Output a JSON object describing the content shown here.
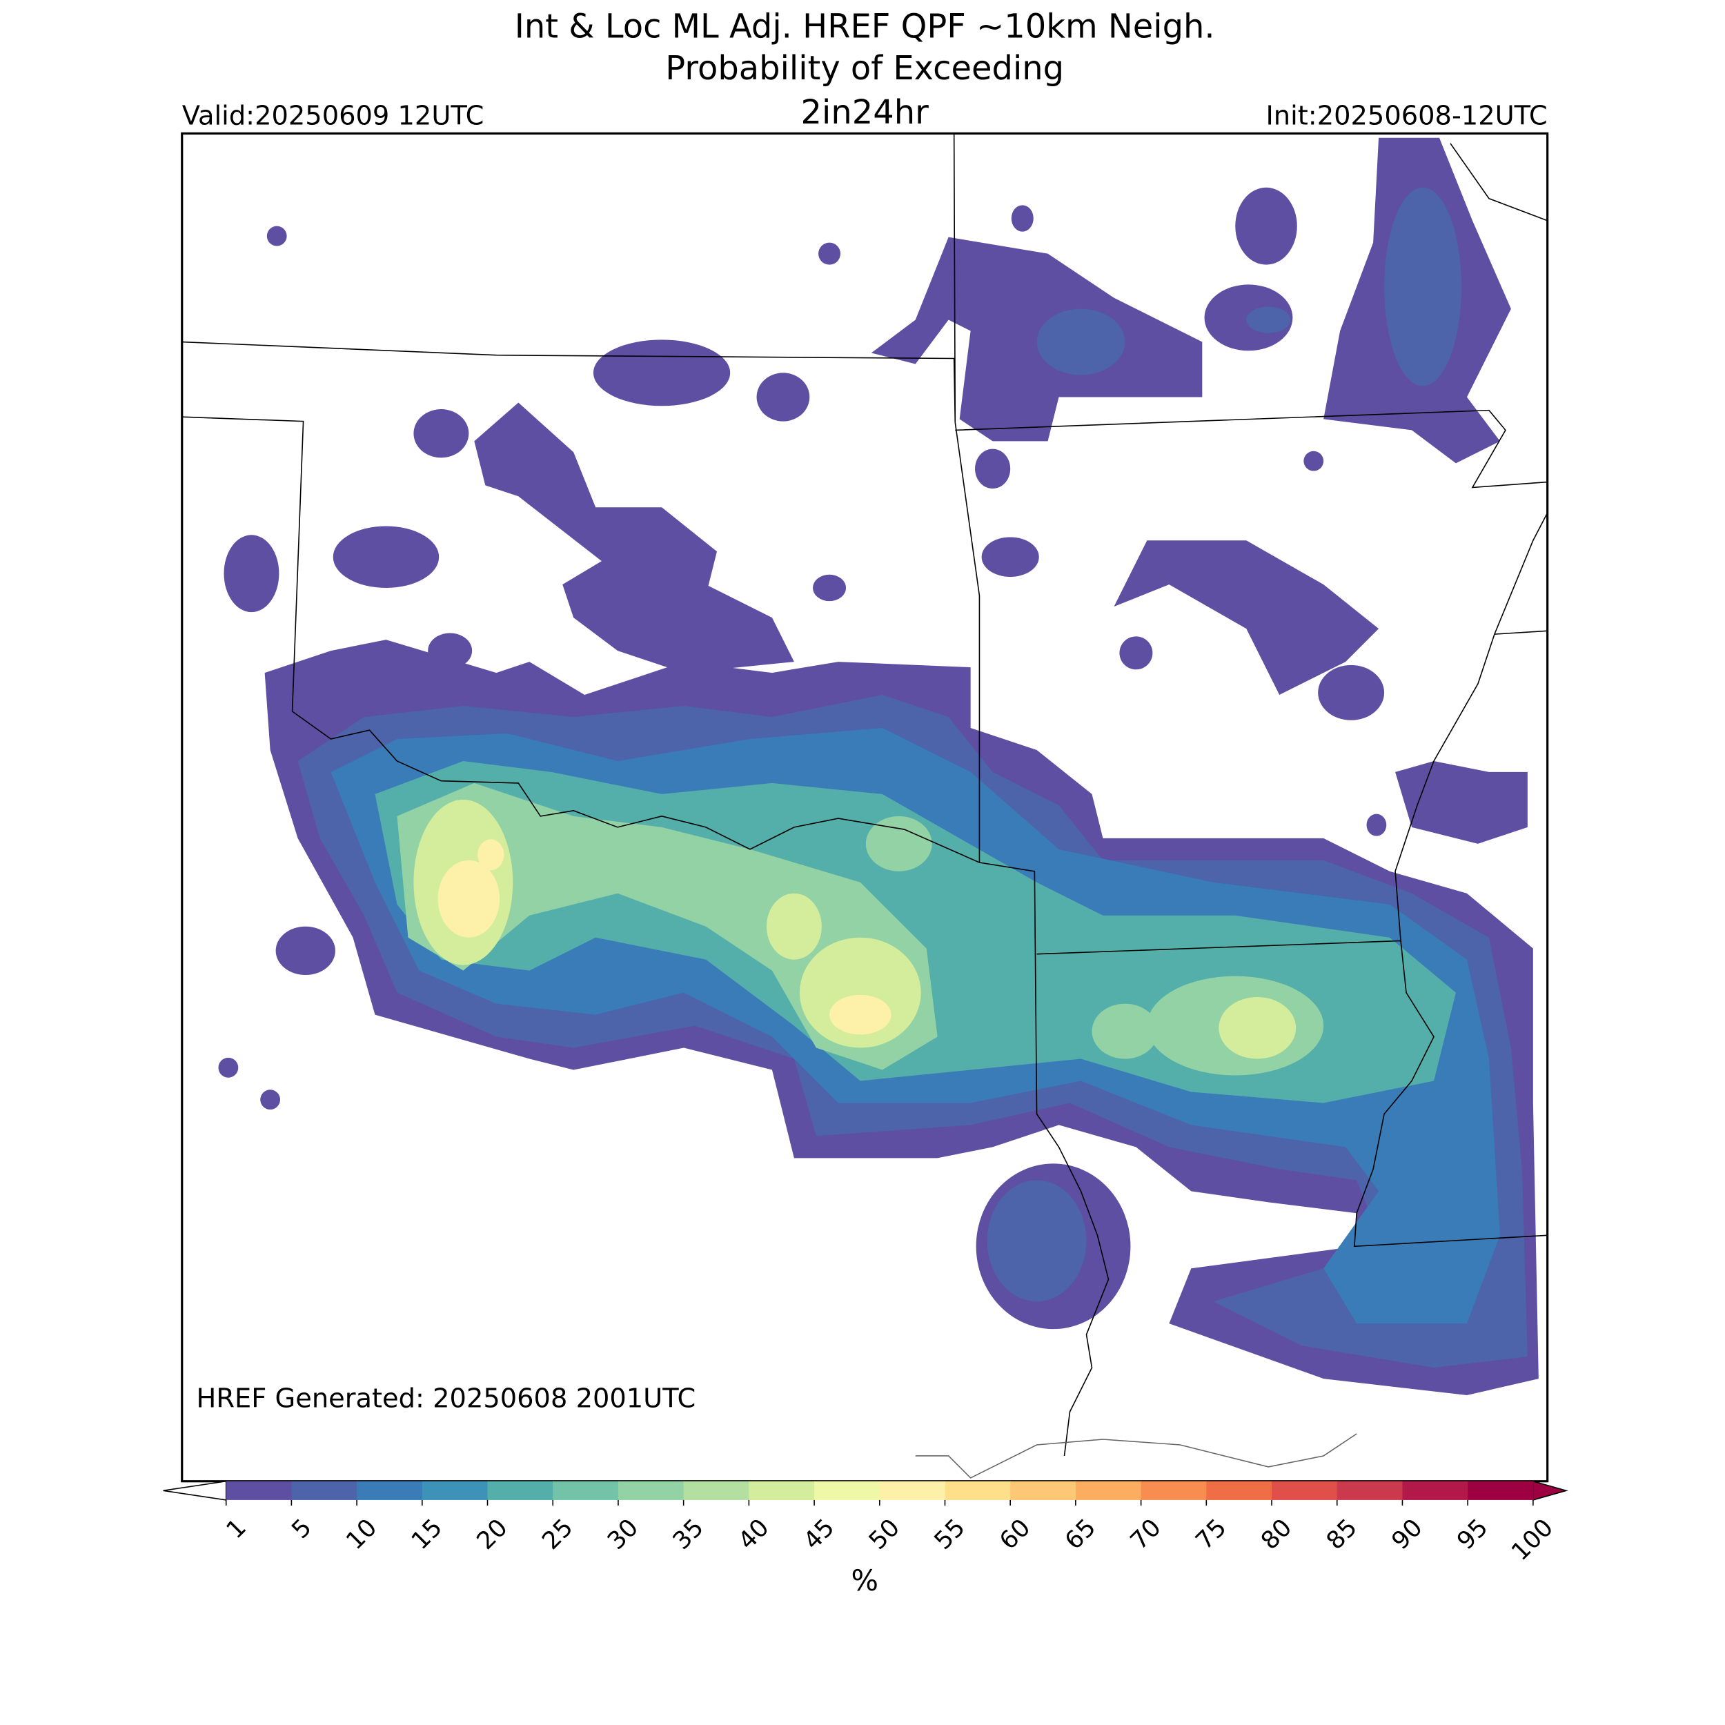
{
  "header": {
    "title_lines": [
      "Int & Loc ML Adj. HREF QPF ~10km Neigh.",
      "Probability of Exceeding"
    ],
    "threshold": "2in24hr",
    "valid": "Valid:20250609 12UTC",
    "init": "Init:20250608-12UTC"
  },
  "map": {
    "generated": "HREF Generated: 20250608 2001UTC"
  },
  "colorbar": {
    "ticks": [
      1,
      5,
      10,
      15,
      20,
      25,
      30,
      35,
      40,
      45,
      50,
      55,
      60,
      65,
      70,
      75,
      80,
      85,
      90,
      95,
      100
    ],
    "colors": [
      "#5e4fa2",
      "#4d63aa",
      "#3a7cb7",
      "#3d93b7",
      "#54aeaa",
      "#72c3a7",
      "#92d2a4",
      "#b3e0a1",
      "#d3ed9c",
      "#eef8a6",
      "#fdf1a9",
      "#fee08b",
      "#fdc876",
      "#fdad60",
      "#f88d52",
      "#ef6e45",
      "#e04f4a",
      "#cb394c",
      "#b2194a",
      "#9e0142"
    ],
    "under_color": "#ffffff",
    "over_color": "#9e0142",
    "label": "%"
  }
}
